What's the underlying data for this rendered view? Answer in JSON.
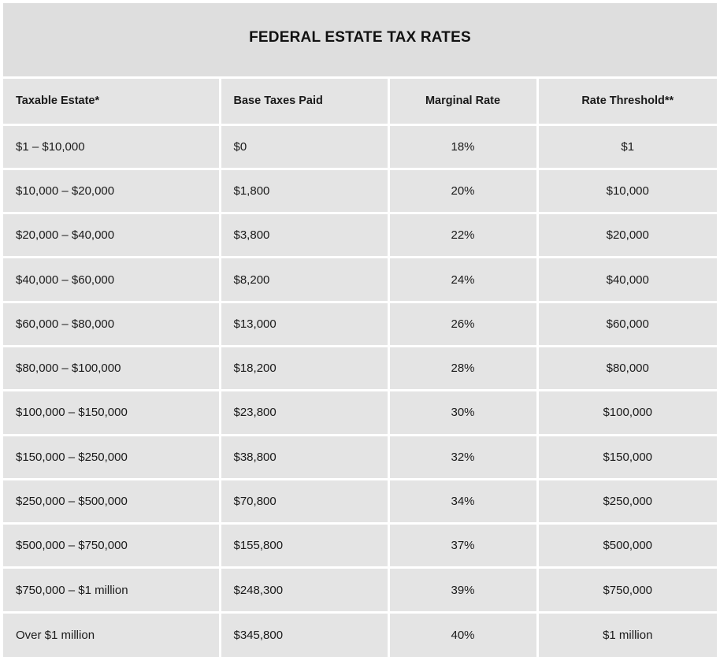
{
  "title": "FEDERAL ESTATE TAX RATES",
  "columns": [
    "Taxable Estate*",
    "Base Taxes Paid",
    "Marginal Rate",
    "Rate Threshold**"
  ],
  "rows": [
    [
      "$1 – $10,000",
      "$0",
      "18%",
      "$1"
    ],
    [
      "$10,000 – $20,000",
      "$1,800",
      "20%",
      "$10,000"
    ],
    [
      "$20,000 – $40,000",
      "$3,800",
      "22%",
      "$20,000"
    ],
    [
      "$40,000 – $60,000",
      "$8,200",
      "24%",
      "$40,000"
    ],
    [
      "$60,000 – $80,000",
      "$13,000",
      "26%",
      "$60,000"
    ],
    [
      "$80,000 – $100,000",
      "$18,200",
      "28%",
      "$80,000"
    ],
    [
      "$100,000 – $150,000",
      "$23,800",
      "30%",
      "$100,000"
    ],
    [
      "$150,000 – $250,000",
      "$38,800",
      "32%",
      "$150,000"
    ],
    [
      "$250,000 – $500,000",
      "$70,800",
      "34%",
      "$250,000"
    ],
    [
      "$500,000 – $750,000",
      "$155,800",
      "37%",
      "$500,000"
    ],
    [
      "$750,000 – $1 million",
      "$248,300",
      "39%",
      "$750,000"
    ],
    [
      "Over $1 million",
      "$345,800",
      "40%",
      "$1 million"
    ]
  ],
  "colors": {
    "cell_background": "#e4e4e4",
    "title_background": "#dedede",
    "divider": "#ffffff",
    "text": "#1a1a1a"
  }
}
